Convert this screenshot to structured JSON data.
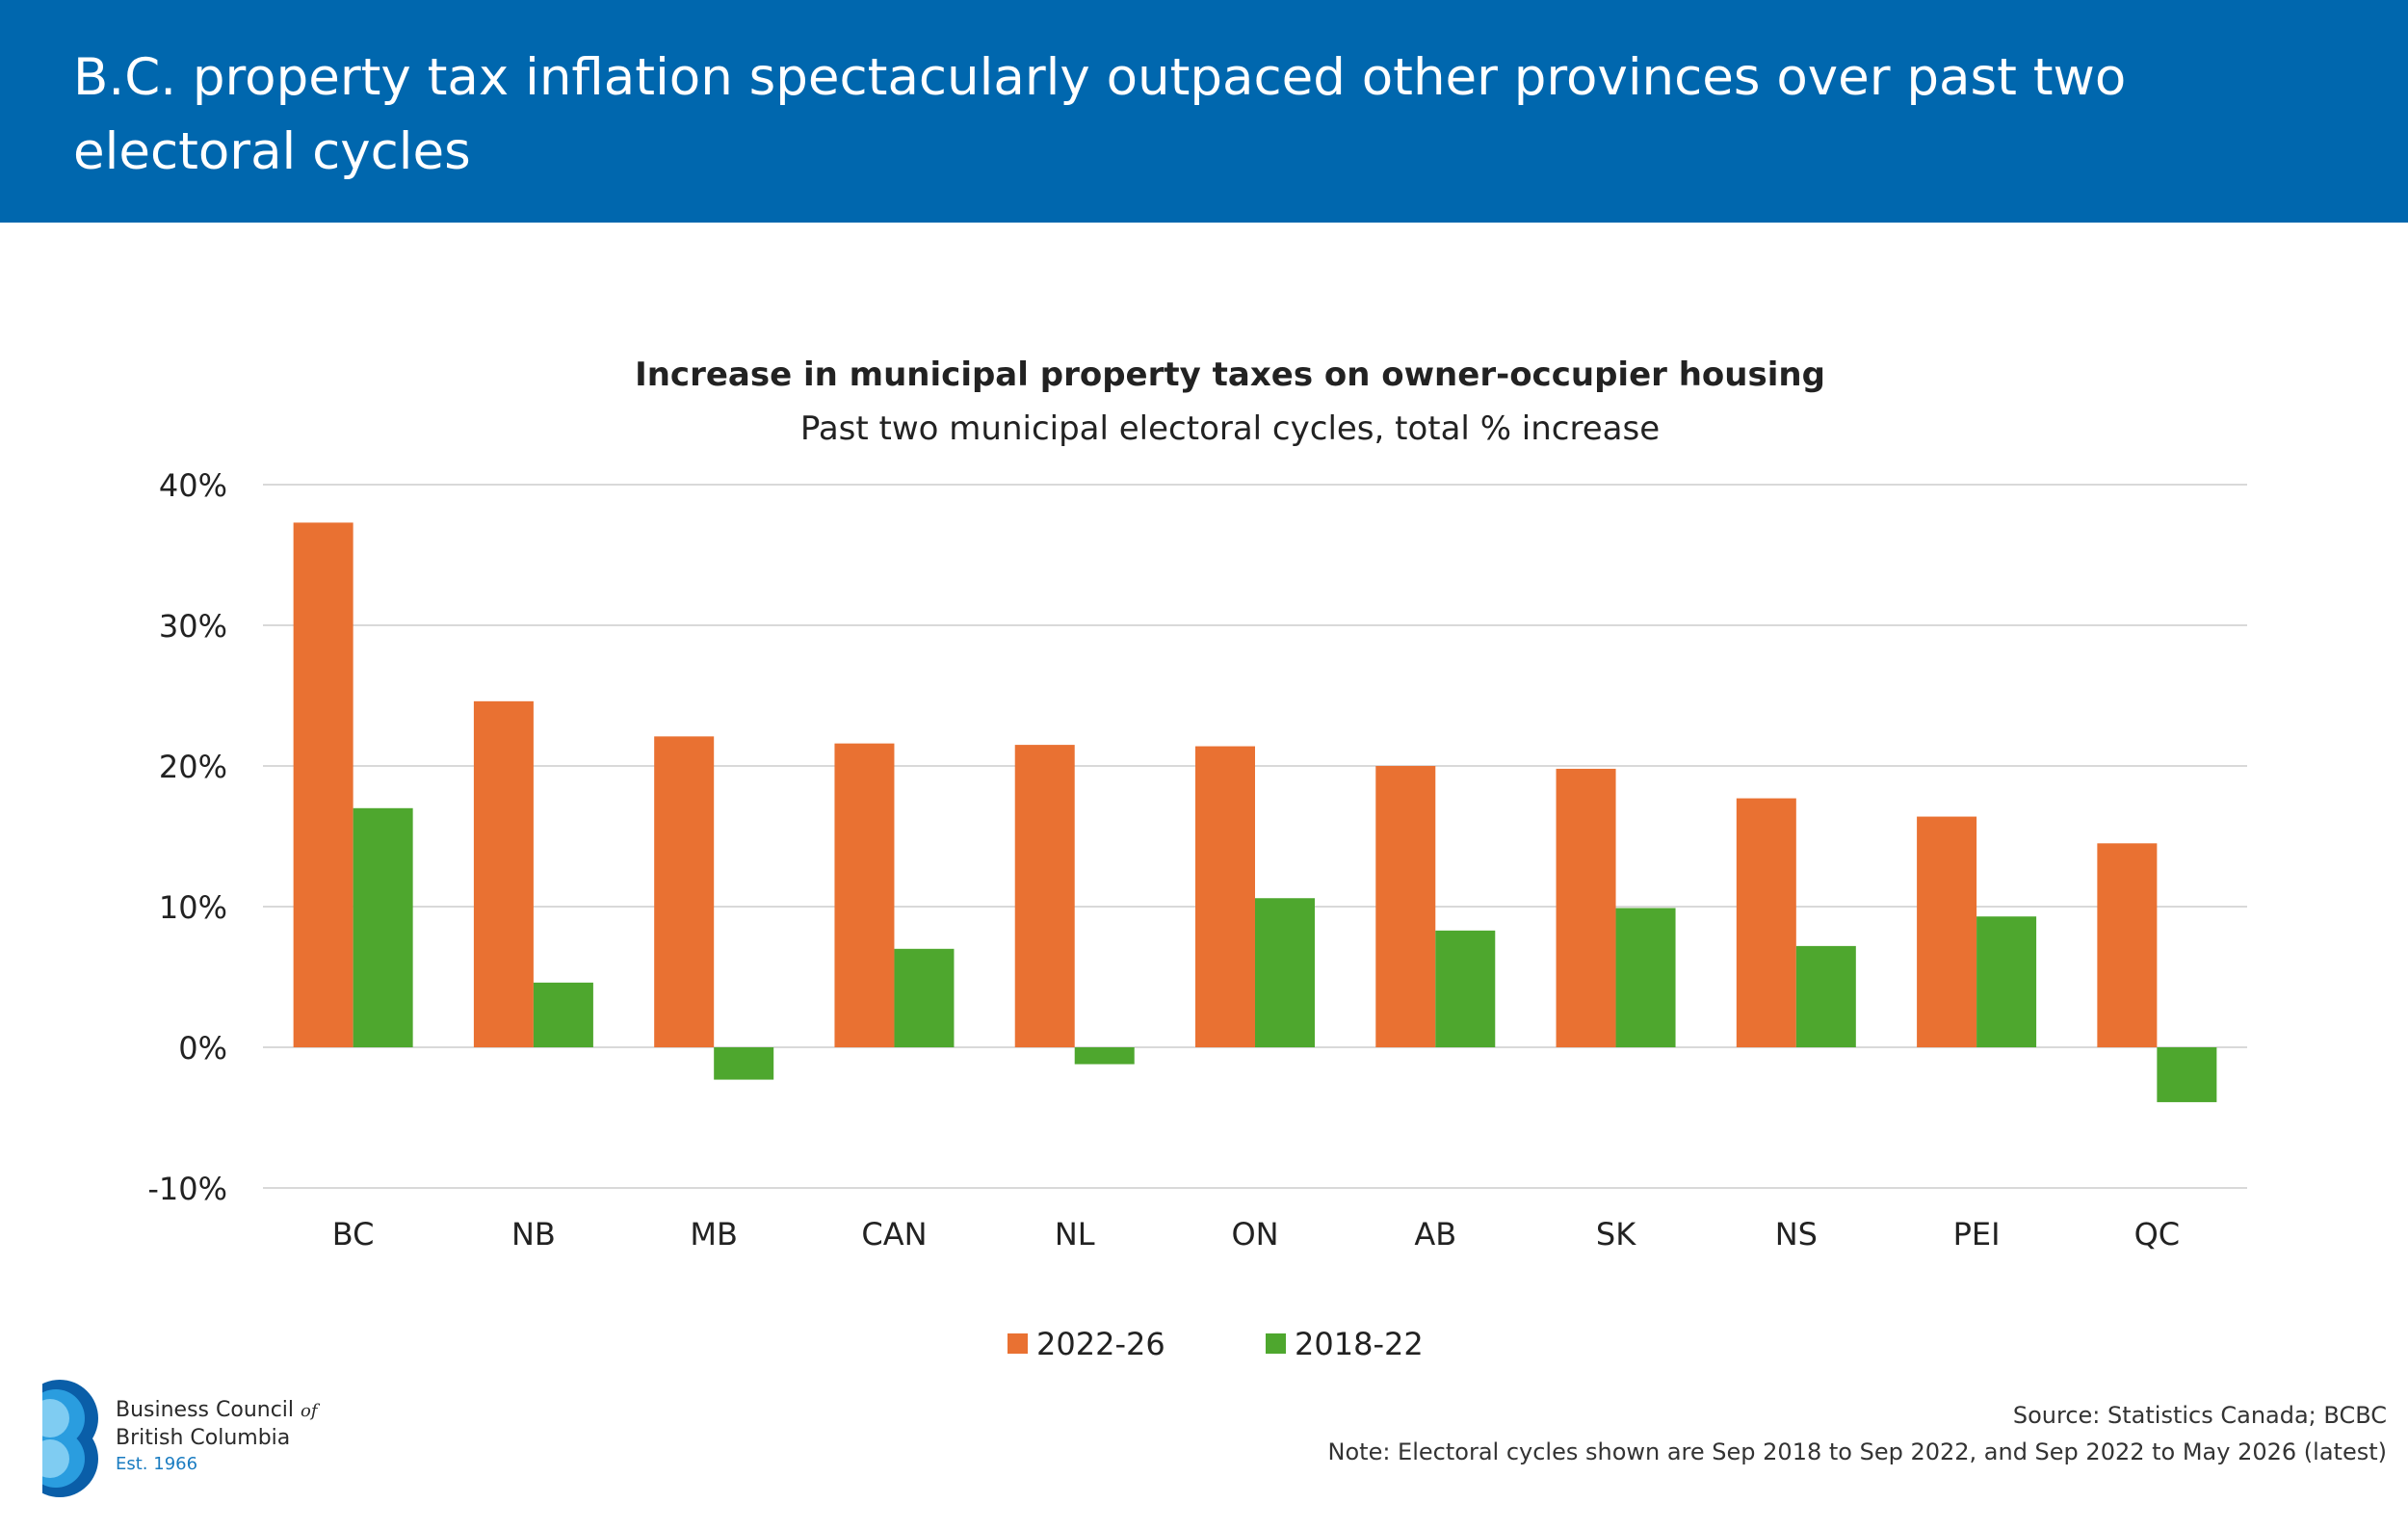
{
  "header": {
    "title": "B.C. property tax inflation spectacularly outpaced other provinces over past two electoral cycles"
  },
  "chart_data": {
    "type": "bar",
    "title": "Increase in municipal property taxes on owner-occupier housing",
    "subtitle": "Past two municipal electoral cycles, total % increase",
    "categories": [
      "BC",
      "NB",
      "MB",
      "CAN",
      "NL",
      "ON",
      "AB",
      "SK",
      "NS",
      "PEI",
      "QC"
    ],
    "series": [
      {
        "name": "2022-26",
        "color": "#e97132",
        "values": [
          37.3,
          24.6,
          22.1,
          21.6,
          21.5,
          21.4,
          20.0,
          19.8,
          17.7,
          16.4,
          14.5
        ]
      },
      {
        "name": "2018-22",
        "color": "#4ea72e",
        "values": [
          17.0,
          4.6,
          -2.3,
          7.0,
          -1.2,
          10.6,
          8.3,
          9.9,
          7.2,
          9.3,
          -3.9
        ]
      }
    ],
    "ylim": [
      -10,
      40
    ],
    "yticks": [
      -10,
      0,
      10,
      20,
      30,
      40
    ],
    "ytick_labels": [
      "-10%",
      "0%",
      "10%",
      "20%",
      "30%",
      "40%"
    ],
    "grid": true,
    "legend_position": "bottom-center"
  },
  "footer": {
    "source": "Source: Statistics Canada; BCBC",
    "note": "Note: Electoral cycles shown are Sep 2018 to Sep 2022, and Sep 2022 to May 2026 (latest)"
  },
  "logo": {
    "line1": "Business Council",
    "line1_suffix": "of",
    "line2": "British Columbia",
    "line3": "Est. 1966"
  }
}
